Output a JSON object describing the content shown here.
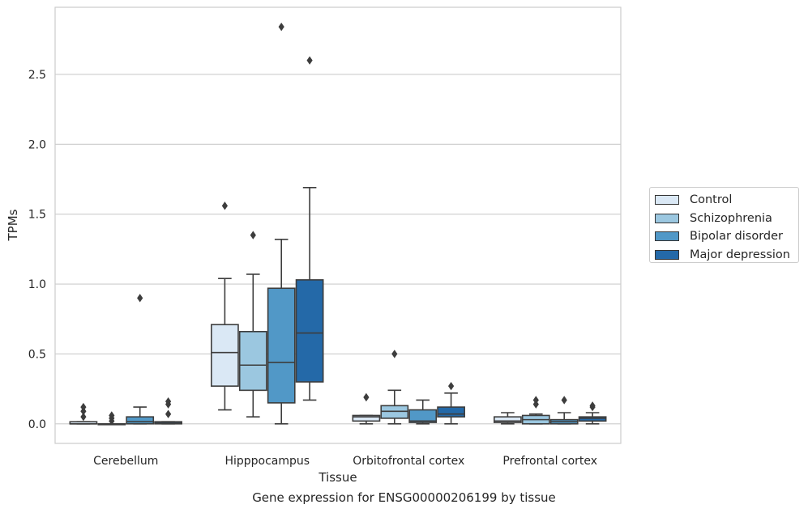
{
  "chart_data": {
    "type": "box",
    "title": "",
    "caption": "Gene expression for ENSG00000206199 by tissue",
    "xlabel": "Tissue",
    "ylabel": "TPMs",
    "ylim": [
      -0.14,
      2.98
    ],
    "yticks": [
      0.0,
      0.5,
      1.0,
      1.5,
      2.0,
      2.5
    ],
    "ytick_labels": [
      "0.0",
      "0.5",
      "1.0",
      "1.5",
      "2.0",
      "2.5"
    ],
    "grid": "horizontal",
    "legend_position": "right",
    "categories": [
      "Cerebellum",
      "Hipppocampus",
      "Orbitofrontal cortex",
      "Prefrontal cortex"
    ],
    "series": [
      {
        "name": "Control",
        "color": "#dae8f5",
        "boxes": [
          {
            "q1": 0.0,
            "median": 0.0,
            "q3": 0.015,
            "whislo": 0.0,
            "whishi": 0.015,
            "fliers": [
              0.05,
              0.09,
              0.12
            ]
          },
          {
            "q1": 0.27,
            "median": 0.51,
            "q3": 0.71,
            "whislo": 0.1,
            "whishi": 1.04,
            "fliers": [
              1.56
            ]
          },
          {
            "q1": 0.02,
            "median": 0.05,
            "q3": 0.06,
            "whislo": 0.0,
            "whishi": 0.06,
            "fliers": [
              0.19
            ]
          },
          {
            "q1": 0.01,
            "median": 0.02,
            "q3": 0.05,
            "whislo": 0.0,
            "whishi": 0.08,
            "fliers": []
          }
        ]
      },
      {
        "name": "Schizophrenia",
        "color": "#9bc7e0",
        "boxes": [
          {
            "q1": 0.0,
            "median": 0.0,
            "q3": 0.0,
            "whislo": 0.0,
            "whishi": 0.0,
            "fliers": [
              0.02,
              0.04,
              0.06
            ]
          },
          {
            "q1": 0.24,
            "median": 0.42,
            "q3": 0.66,
            "whislo": 0.05,
            "whishi": 1.07,
            "fliers": [
              1.35
            ]
          },
          {
            "q1": 0.04,
            "median": 0.09,
            "q3": 0.13,
            "whislo": 0.0,
            "whishi": 0.24,
            "fliers": [
              0.5
            ]
          },
          {
            "q1": 0.0,
            "median": 0.03,
            "q3": 0.06,
            "whislo": 0.0,
            "whishi": 0.07,
            "fliers": [
              0.14,
              0.17
            ]
          }
        ]
      },
      {
        "name": "Bipolar disorder",
        "color": "#5198c7",
        "boxes": [
          {
            "q1": 0.0,
            "median": 0.015,
            "q3": 0.05,
            "whislo": 0.0,
            "whishi": 0.12,
            "fliers": [
              0.9
            ]
          },
          {
            "q1": 0.15,
            "median": 0.44,
            "q3": 0.97,
            "whislo": 0.0,
            "whishi": 1.32,
            "fliers": [
              2.84
            ]
          },
          {
            "q1": 0.01,
            "median": 0.02,
            "q3": 0.1,
            "whislo": 0.0,
            "whishi": 0.17,
            "fliers": []
          },
          {
            "q1": 0.0,
            "median": 0.015,
            "q3": 0.03,
            "whislo": 0.0,
            "whishi": 0.08,
            "fliers": [
              0.17
            ]
          }
        ]
      },
      {
        "name": "Major depression",
        "color": "#2469a8",
        "boxes": [
          {
            "q1": 0.0,
            "median": 0.01,
            "q3": 0.015,
            "whislo": 0.0,
            "whishi": 0.015,
            "fliers": [
              0.07,
              0.14,
              0.16
            ]
          },
          {
            "q1": 0.3,
            "median": 0.65,
            "q3": 1.03,
            "whislo": 0.17,
            "whishi": 1.69,
            "fliers": [
              2.6
            ]
          },
          {
            "q1": 0.05,
            "median": 0.07,
            "q3": 0.12,
            "whislo": 0.0,
            "whishi": 0.22,
            "fliers": [
              0.27
            ]
          },
          {
            "q1": 0.02,
            "median": 0.04,
            "q3": 0.05,
            "whislo": 0.0,
            "whishi": 0.08,
            "fliers": [
              0.12,
              0.13
            ]
          }
        ]
      }
    ]
  }
}
